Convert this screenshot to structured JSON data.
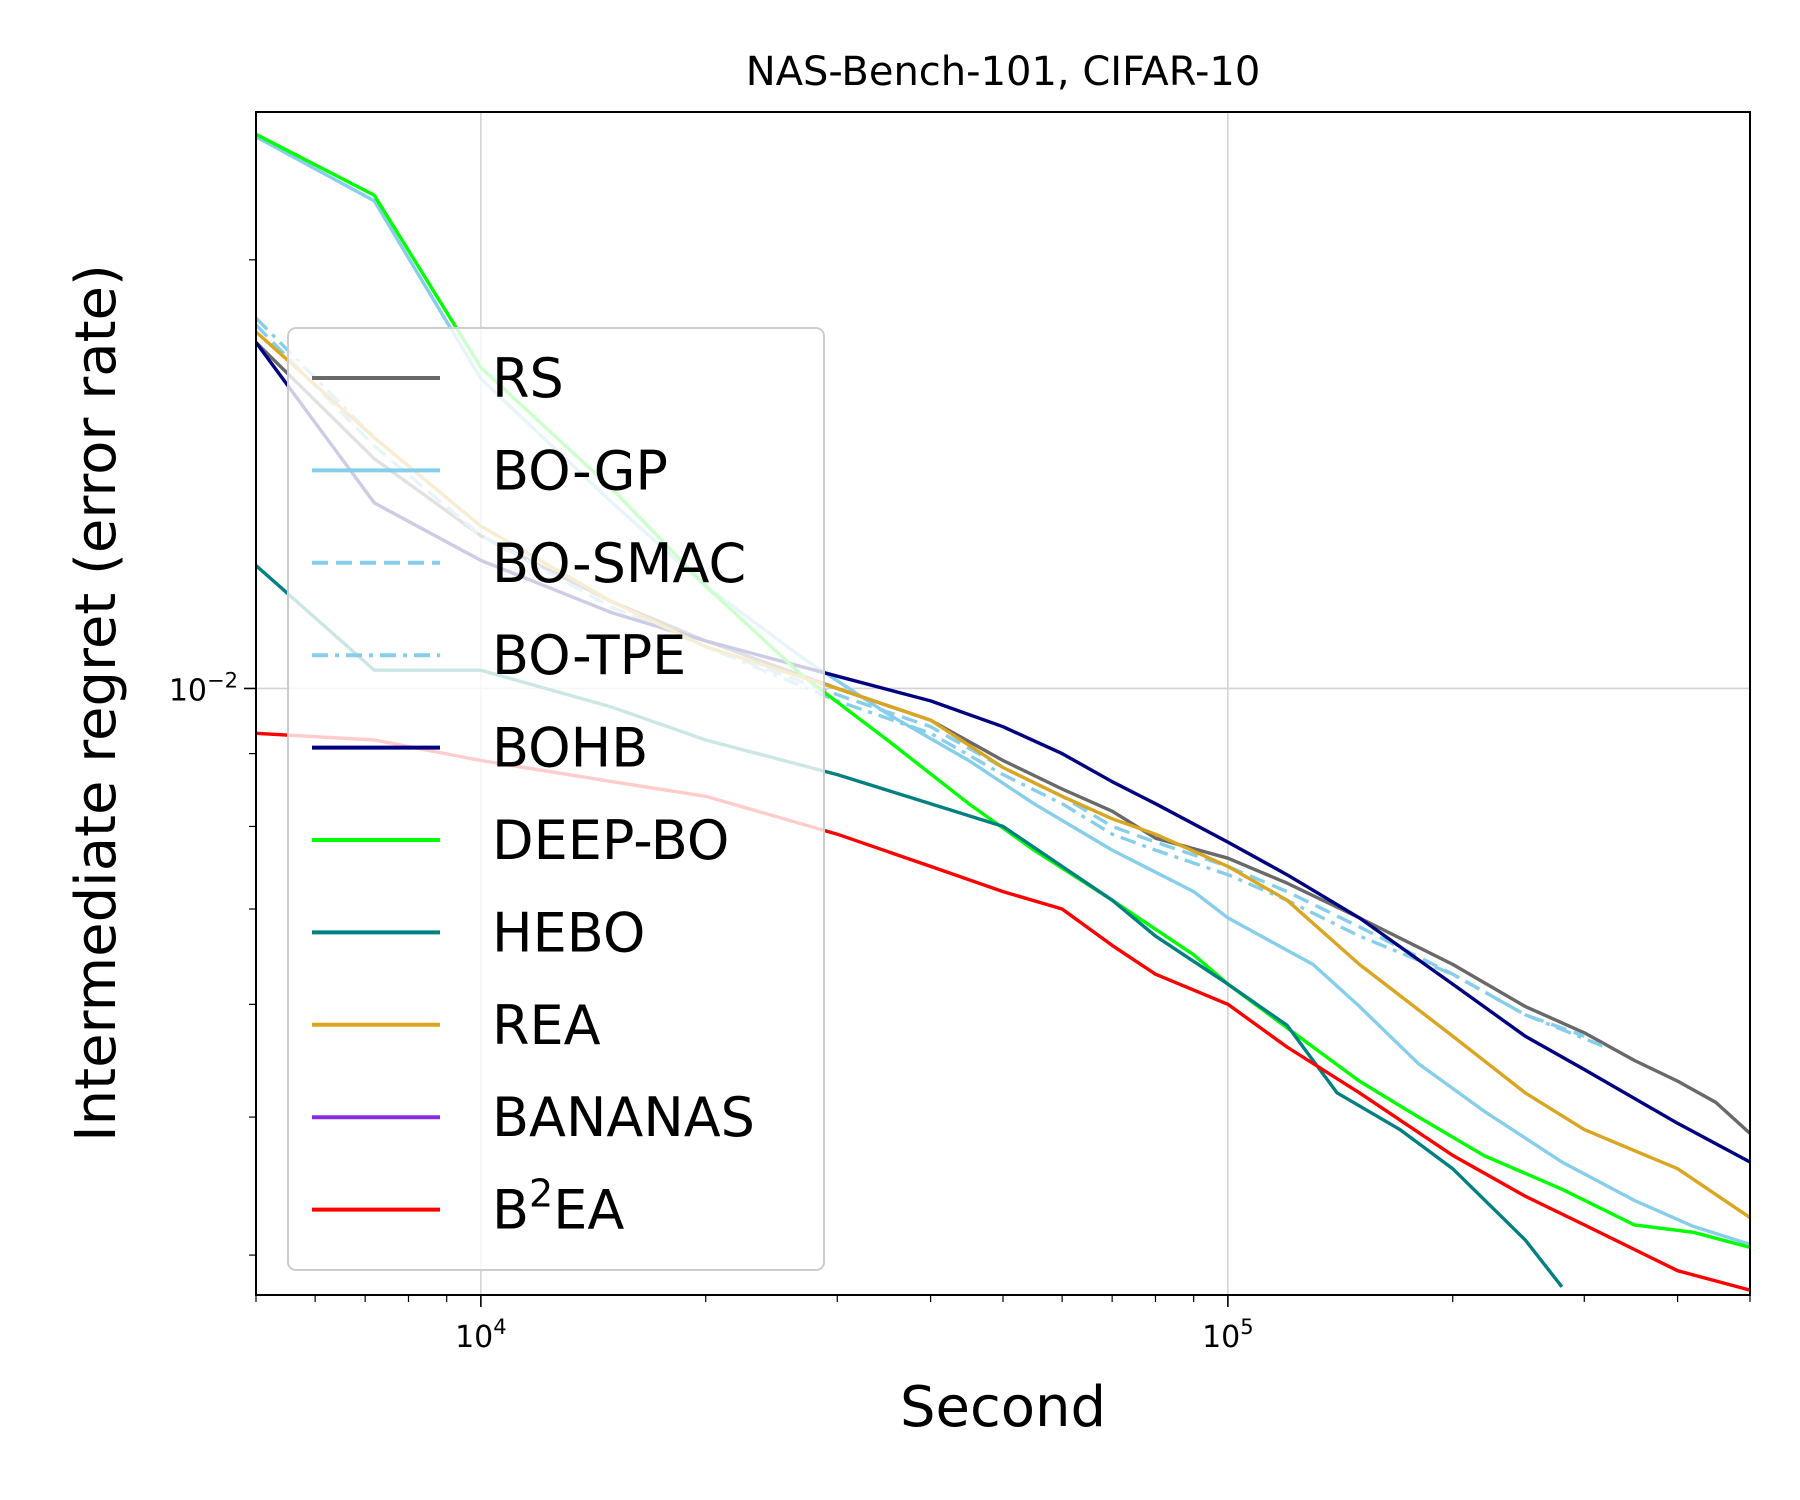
{
  "chart_data": {
    "type": "line",
    "title": "NAS-Bench-101, CIFAR-10",
    "xlabel": "Second",
    "ylabel": "Intermediate regret (error rate)",
    "xscale": "log",
    "yscale": "log",
    "xlim": [
      5000,
      500000
    ],
    "ylim": [
      0.00375,
      0.0254
    ],
    "grid": true,
    "legend_position": "center-left",
    "x_ticks": [
      {
        "value": 10000,
        "base": "10",
        "exp": "4"
      },
      {
        "value": 100000,
        "base": "10",
        "exp": "5"
      }
    ],
    "y_ticks": [
      {
        "value": 0.01,
        "base": "10",
        "exp": "−2"
      }
    ],
    "series": [
      {
        "name": "RS",
        "color": "#696969",
        "dash": "solid",
        "x": [
          5000,
          7200,
          10000,
          15000,
          20000,
          30000,
          40000,
          50000,
          60000,
          70000,
          80000,
          100000,
          120000,
          150000,
          200000,
          250000,
          300000,
          350000,
          400000,
          450000,
          500000
        ],
        "y": [
          0.0175,
          0.0145,
          0.0128,
          0.0115,
          0.0108,
          0.01,
          0.0095,
          0.0089,
          0.0085,
          0.0082,
          0.00785,
          0.0076,
          0.0073,
          0.0069,
          0.0064,
          0.00598,
          0.00573,
          0.00548,
          0.0053,
          0.00512,
          0.00487
        ]
      },
      {
        "name": "BO-GP",
        "color": "#87ceeb",
        "dash": "solid",
        "x": [
          5000,
          7200,
          10000,
          15000,
          20000,
          27000,
          35000,
          45000,
          55000,
          70000,
          90000,
          100000,
          130000,
          150000,
          180000,
          220000,
          280000,
          350000,
          420000,
          500000
        ],
        "y": [
          0.0244,
          0.022,
          0.0165,
          0.0135,
          0.0118,
          0.0105,
          0.0096,
          0.0089,
          0.0083,
          0.0077,
          0.0072,
          0.0069,
          0.0064,
          0.00598,
          0.00545,
          0.00505,
          0.00465,
          0.00437,
          0.00419,
          0.00407
        ]
      },
      {
        "name": "BO-SMAC",
        "color": "#87ceeb",
        "dash": "dashed",
        "x": [
          5000,
          7200,
          10000,
          15000,
          20000,
          30000,
          40000,
          50000,
          60000,
          70000,
          80000,
          100000,
          120000,
          150000,
          200000,
          250000,
          300000
        ],
        "y": [
          0.018,
          0.0148,
          0.0128,
          0.0114,
          0.0107,
          0.0099,
          0.0094,
          0.0088,
          0.0084,
          0.008,
          0.0078,
          0.0075,
          0.0072,
          0.0068,
          0.0063,
          0.0059,
          0.0057
        ]
      },
      {
        "name": "BO-TPE",
        "color": "#87ceeb",
        "dash": "dashdot",
        "x": [
          5000,
          7200,
          10000,
          15000,
          20000,
          30000,
          40000,
          50000,
          60000,
          70000,
          80000,
          100000,
          120000,
          150000,
          200000,
          250000,
          320000
        ],
        "y": [
          0.0182,
          0.015,
          0.013,
          0.0115,
          0.0107,
          0.0098,
          0.0093,
          0.0087,
          0.0083,
          0.0079,
          0.0077,
          0.0074,
          0.0071,
          0.0067,
          0.0063,
          0.0059,
          0.0056
        ]
      },
      {
        "name": "BOHB",
        "color": "#000080",
        "dash": "solid",
        "x": [
          5000,
          7200,
          10000,
          15000,
          20000,
          30000,
          40000,
          50000,
          60000,
          70000,
          80000,
          100000,
          120000,
          150000,
          200000,
          250000,
          300000,
          400000,
          500000
        ],
        "y": [
          0.0175,
          0.0135,
          0.0123,
          0.0113,
          0.0108,
          0.0102,
          0.0098,
          0.0094,
          0.009,
          0.0086,
          0.0083,
          0.0078,
          0.0074,
          0.0069,
          0.0062,
          0.0057,
          0.0054,
          0.00495,
          0.00465
        ]
      },
      {
        "name": "DEEP-BO",
        "color": "#00ff00",
        "dash": "solid",
        "x": [
          5000,
          7200,
          10000,
          15000,
          20000,
          27000,
          35000,
          45000,
          55000,
          70000,
          90000,
          100000,
          130000,
          150000,
          180000,
          220000,
          280000,
          350000,
          420000,
          500000
        ],
        "y": [
          0.0245,
          0.0222,
          0.0168,
          0.0138,
          0.0118,
          0.0102,
          0.0092,
          0.0083,
          0.0077,
          0.0071,
          0.0065,
          0.0062,
          0.0056,
          0.0053,
          0.005,
          0.0047,
          0.00445,
          0.0042,
          0.00415,
          0.00405
        ]
      },
      {
        "name": "HEBO",
        "color": "#008080",
        "dash": "solid",
        "x": [
          5000,
          7200,
          10000,
          15000,
          20000,
          30000,
          40000,
          50000,
          60000,
          70000,
          80000,
          100000,
          120000,
          140000,
          170000,
          200000,
          250000,
          280000
        ],
        "y": [
          0.0122,
          0.0103,
          0.0103,
          0.0097,
          0.0092,
          0.0087,
          0.0083,
          0.008,
          0.0075,
          0.0071,
          0.0067,
          0.0062,
          0.0058,
          0.0052,
          0.0049,
          0.0046,
          0.0041,
          0.0038
        ]
      },
      {
        "name": "REA",
        "color": "#daa520",
        "dash": "solid",
        "x": [
          5000,
          7200,
          10000,
          15000,
          20000,
          30000,
          40000,
          50000,
          60000,
          70000,
          80000,
          100000,
          120000,
          150000,
          200000,
          250000,
          300000,
          400000,
          500000
        ],
        "y": [
          0.0178,
          0.015,
          0.013,
          0.0115,
          0.0107,
          0.01,
          0.0095,
          0.0088,
          0.0084,
          0.0081,
          0.0079,
          0.0075,
          0.0071,
          0.0064,
          0.0057,
          0.0052,
          0.0049,
          0.0046,
          0.00425
        ]
      },
      {
        "name": "BANANAS",
        "color": "#8a2be2",
        "dash": "solid",
        "x": [],
        "y": []
      },
      {
        "name": "B2EA",
        "label_base": "B",
        "label_sup": "2",
        "label_rest": "EA",
        "color": "#ff0000",
        "dash": "solid",
        "x": [
          5000,
          7200,
          10000,
          15000,
          20000,
          30000,
          40000,
          50000,
          60000,
          70000,
          80000,
          100000,
          120000,
          150000,
          200000,
          250000,
          300000,
          400000,
          500000
        ],
        "y": [
          0.0093,
          0.0092,
          0.0089,
          0.0086,
          0.0084,
          0.0079,
          0.0075,
          0.0072,
          0.007,
          0.0066,
          0.0063,
          0.006,
          0.0056,
          0.0052,
          0.0047,
          0.0044,
          0.0042,
          0.0039,
          0.00378
        ]
      }
    ]
  }
}
